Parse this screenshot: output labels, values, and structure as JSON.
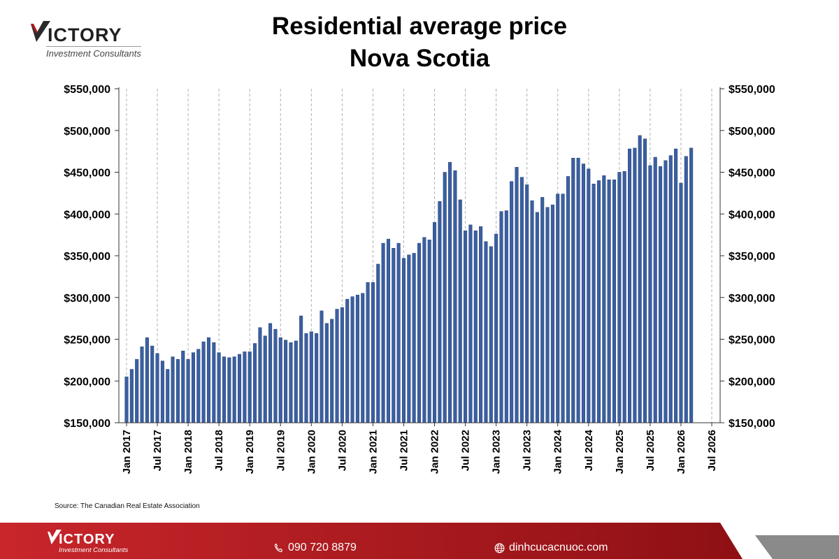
{
  "brand": {
    "name": "ICTORY",
    "tagline": "Investment Consultants"
  },
  "chart_title": [
    "Residential average price",
    "Nova Scotia"
  ],
  "source": "Source: The Canadian Real Estate Association",
  "footer": {
    "phone": "090 720 8879",
    "website": "dinhcucacnuoc.com"
  },
  "colors": {
    "bar": "#3b5fa0",
    "bar_edge": "#22407a",
    "brand_red": "#b41a1f",
    "footer_dark": "#8e1014",
    "footer_gray": "#8a8a8a"
  },
  "icons": [
    "phone-icon",
    "globe-icon"
  ],
  "chart_data": {
    "type": "bar",
    "title": "Residential average price Nova Scotia",
    "ylim": [
      150000,
      550000
    ],
    "y_ticks": [
      "$150,000",
      "$200,000",
      "$250,000",
      "$300,000",
      "$350,000",
      "$400,000",
      "$450,000",
      "$500,000",
      "$550,000"
    ],
    "y_tick_values": [
      150000,
      200000,
      250000,
      300000,
      350000,
      400000,
      450000,
      500000,
      550000
    ],
    "y_axis_both_sides": true,
    "x_ticks": [
      "Jan 2017",
      "Jul 2017",
      "Jan 2018",
      "Jul 2018",
      "Jan 2019",
      "Jul 2019",
      "Jan 2020",
      "Jul 2020",
      "Jan 2021",
      "Jul 2021",
      "Jan 2022",
      "Jul 2022",
      "Jan 2023",
      "Jul 2023",
      "Jan 2024",
      "Jul 2024",
      "Jan 2025",
      "Jul 2025",
      "Jan 2026",
      "Jul 2026"
    ],
    "x_start": "Jan 2017",
    "x_end": "Jul 2026",
    "grid": "vertical dashed",
    "series": [
      {
        "start": "Jan 2017",
        "frequency": "monthly",
        "values": [
          205000,
          214000,
          226000,
          241000,
          252000,
          242000,
          233000,
          224000,
          214000,
          229000,
          226000,
          236000,
          226000,
          234000,
          238000,
          247000,
          252000,
          246000,
          234000,
          229000,
          228000,
          229000,
          232000,
          235000,
          235000,
          245000,
          264000,
          254000,
          269000,
          262000,
          252000,
          249000,
          246000,
          248000,
          278000,
          257000,
          259000,
          257000,
          284000,
          269000,
          274000,
          286000,
          288000,
          298000,
          301000,
          303000,
          305000,
          318000,
          318000,
          340000,
          365000,
          370000,
          359000,
          365000,
          347000,
          351000,
          353000,
          365000,
          372000,
          369000,
          390000,
          415000,
          450000,
          462000,
          452000,
          417000,
          380000,
          387000,
          380000,
          385000,
          367000,
          361000,
          376000,
          403000,
          404000,
          439000,
          456000,
          444000,
          435000,
          416000,
          402000,
          420000,
          408000,
          411000,
          424000,
          424000,
          445000,
          467000,
          467000,
          460000,
          454000,
          436000,
          440000,
          446000,
          441000,
          441000,
          450000,
          451000,
          478000,
          479000,
          494000,
          490000,
          458000,
          468000,
          457000,
          464000,
          470000,
          478000,
          437000,
          469000,
          479000
        ]
      }
    ]
  }
}
